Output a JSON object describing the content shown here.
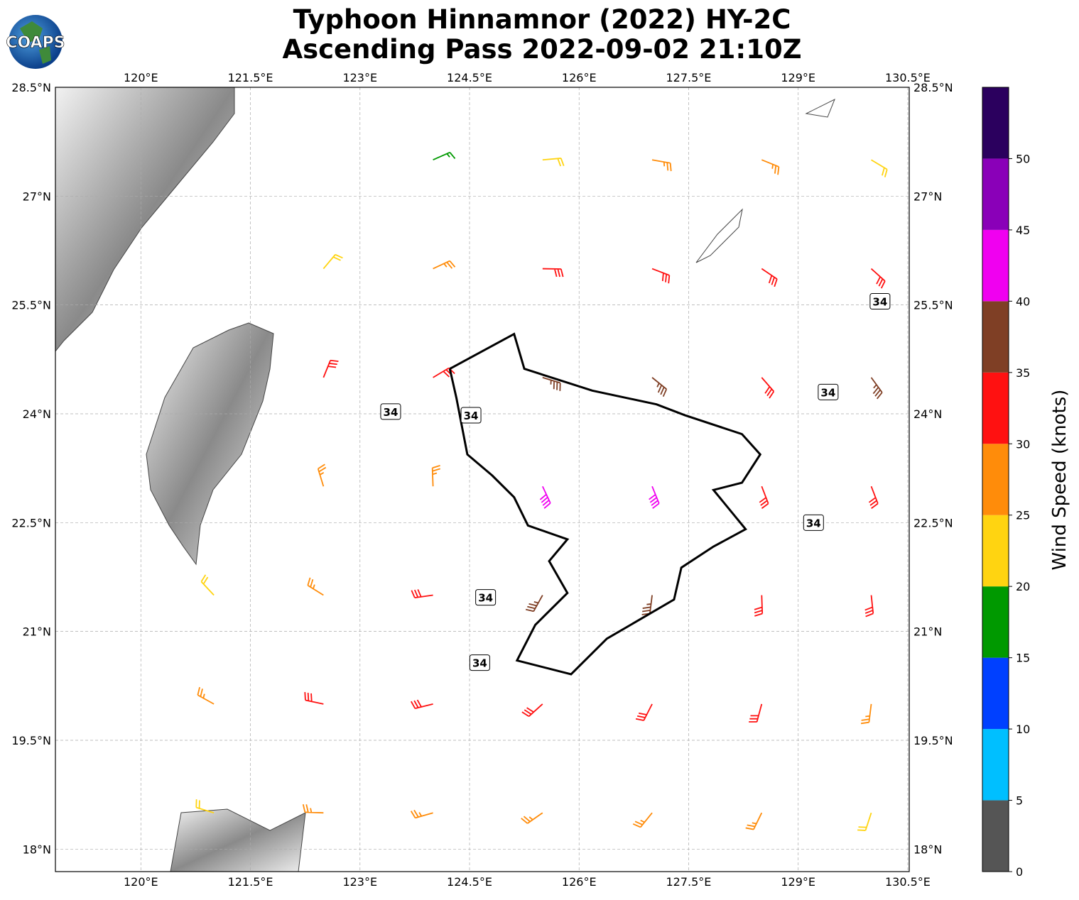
{
  "chart_data": {
    "type": "barbs",
    "title": "Typhoon Hinnamnor (2022) HY-2C",
    "subtitle": "Ascending Pass 2022-09-02 21:10Z",
    "xlim": [
      118.83,
      130.52
    ],
    "ylim": [
      17.69,
      28.5
    ],
    "xticks": [
      {
        "value": 120,
        "label": "120°E"
      },
      {
        "value": 121.5,
        "label": "121.5°E"
      },
      {
        "value": 123,
        "label": "123°E"
      },
      {
        "value": 124.5,
        "label": "124.5°E"
      },
      {
        "value": 126,
        "label": "126°E"
      },
      {
        "value": 127.5,
        "label": "127.5°E"
      },
      {
        "value": 129,
        "label": "129°E"
      },
      {
        "value": 130.5,
        "label": "130.5°E"
      }
    ],
    "yticks": [
      {
        "value": 18,
        "label": "18°N"
      },
      {
        "value": 19.5,
        "label": "19.5°N"
      },
      {
        "value": 21,
        "label": "21°N"
      },
      {
        "value": 22.5,
        "label": "22.5°N"
      },
      {
        "value": 24,
        "label": "24°N"
      },
      {
        "value": 25.5,
        "label": "25.5°N"
      },
      {
        "value": 27,
        "label": "27°N"
      },
      {
        "value": 28.5,
        "label": "28.5°N"
      }
    ],
    "grid": true,
    "barbs": {
      "lon": [
        121,
        121,
        121,
        122.5,
        122.5,
        122.5,
        122.5,
        122.5,
        122.5,
        124,
        124,
        124,
        124,
        124,
        124,
        124,
        125.5,
        125.5,
        125.5,
        125.5,
        125.5,
        125.5,
        125.5,
        127,
        127,
        127,
        127,
        127,
        127,
        127,
        128.5,
        128.5,
        128.5,
        128.5,
        128.5,
        128.5,
        128.5,
        130,
        130,
        130,
        130,
        130,
        130,
        130
      ],
      "lat": [
        18.5,
        20,
        21.5,
        18.5,
        20,
        21.5,
        23,
        24.5,
        26,
        18.5,
        20,
        21.5,
        23,
        24.5,
        26,
        27.5,
        18.5,
        20,
        21.5,
        23,
        24.5,
        26,
        27.5,
        18.5,
        20,
        21.5,
        23,
        24.5,
        26,
        27.5,
        18.5,
        20,
        21.5,
        23,
        24.5,
        26,
        27.5,
        18.5,
        20,
        21.5,
        23,
        24.5,
        26,
        27.5
      ],
      "speed": [
        22,
        28,
        24,
        26,
        30,
        28,
        27,
        30,
        24,
        28,
        32,
        33,
        28,
        32,
        28,
        18,
        26,
        30,
        37,
        43,
        36,
        30,
        23,
        27,
        31,
        37,
        42,
        36,
        32,
        25,
        27,
        30,
        33,
        34,
        33,
        31,
        26,
        23,
        27,
        30,
        32,
        36,
        33,
        23
      ],
      "direction": [
        287,
        299,
        317,
        272,
        282,
        302,
        343,
        22,
        40,
        254,
        256,
        262,
        358,
        59,
        65,
        66,
        235,
        228,
        209,
        155,
        107,
        91,
        85,
        219,
        207,
        187,
        158,
        129,
        111,
        100,
        206,
        195,
        178,
        159,
        139,
        124,
        112,
        198,
        187,
        174,
        159,
        144,
        132,
        121
      ]
    },
    "contour_level": 34,
    "contour_path": {
      "lon": [
        124.23,
        125.11,
        125.25,
        126.18,
        127.06,
        127.45,
        128.23,
        128.48,
        128.23,
        127.84,
        128.28,
        127.84,
        127.4,
        127.3,
        126.38,
        125.89,
        125.15,
        125.4,
        125.84,
        125.59,
        125.84,
        125.3,
        125.11,
        124.81,
        124.47,
        124.32,
        124.23
      ],
      "lat": [
        24.62,
        25.1,
        24.62,
        24.32,
        24.13,
        23.98,
        23.72,
        23.44,
        23.05,
        22.95,
        22.41,
        22.17,
        21.88,
        21.44,
        20.9,
        20.41,
        20.6,
        21.09,
        21.53,
        21.97,
        22.27,
        22.46,
        22.85,
        23.15,
        23.44,
        24.22,
        24.62
      ]
    },
    "contour_labels": {
      "lon": [
        123.42,
        124.52,
        130.12,
        129.41,
        129.21,
        124.72,
        124.64
      ],
      "lat": [
        24.03,
        23.98,
        25.55,
        24.3,
        22.5,
        21.47,
        20.57
      ]
    },
    "colorbar": {
      "label": "Wind Speed (knots)",
      "lim": [
        0,
        55
      ],
      "ticks": [
        0,
        5,
        10,
        15,
        20,
        25,
        30,
        35,
        40,
        45,
        50
      ],
      "bounds": [
        0,
        5,
        10,
        15,
        20,
        25,
        30,
        35,
        40,
        45,
        50,
        55
      ],
      "colors": [
        "#555555",
        "#00bfff",
        "#0040ff",
        "#009900",
        "#ffd411",
        "#ff8c0a",
        "#ff1111",
        "#7f3f25",
        "#f000f0",
        "#8a00b8",
        "#2b005e"
      ]
    }
  }
}
